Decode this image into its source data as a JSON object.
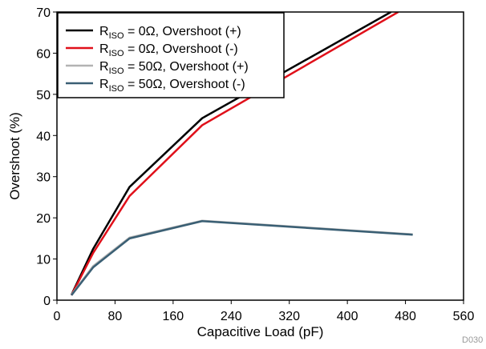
{
  "chart_data": {
    "type": "line",
    "xlabel": "Capacitive Load (pF)",
    "ylabel": "Overshoot (%)",
    "xlim": [
      0,
      560
    ],
    "ylim": [
      0,
      70
    ],
    "xticks": [
      0,
      80,
      160,
      240,
      320,
      400,
      480,
      560
    ],
    "yticks": [
      0,
      10,
      20,
      30,
      40,
      50,
      60,
      70
    ],
    "grid": false,
    "legend_position": "top-left",
    "footnote": "D030",
    "series": [
      {
        "name_main": "R",
        "name_sub": "ISO",
        "name_rest": " = 0Ω, Overshoot (+)",
        "color": "#000000",
        "x": [
          20,
          50,
          100,
          200,
          460
        ],
        "y": [
          1.3,
          12.5,
          27.5,
          44.2,
          70
        ]
      },
      {
        "name_main": "R",
        "name_sub": "ISO",
        "name_rest": " = 0Ω, Overshoot (-)",
        "color": "#e0101a",
        "x": [
          20,
          50,
          100,
          200,
          470
        ],
        "y": [
          1.2,
          11.5,
          25.3,
          42.5,
          70
        ]
      },
      {
        "name_main": "R",
        "name_sub": "ISO",
        "name_rest": " = 50Ω, Overshoot (+)",
        "color": "#b3b3b3",
        "x": [
          20,
          50,
          100,
          200,
          490
        ],
        "y": [
          1.3,
          8.3,
          15.2,
          19.3,
          16
        ]
      },
      {
        "name_main": "R",
        "name_sub": "ISO",
        "name_rest": " = 50Ω, Overshoot (-)",
        "color": "#3a5f74",
        "x": [
          20,
          50,
          100,
          200,
          490
        ],
        "y": [
          1.2,
          8.0,
          15.0,
          19.2,
          15.9
        ]
      }
    ]
  }
}
